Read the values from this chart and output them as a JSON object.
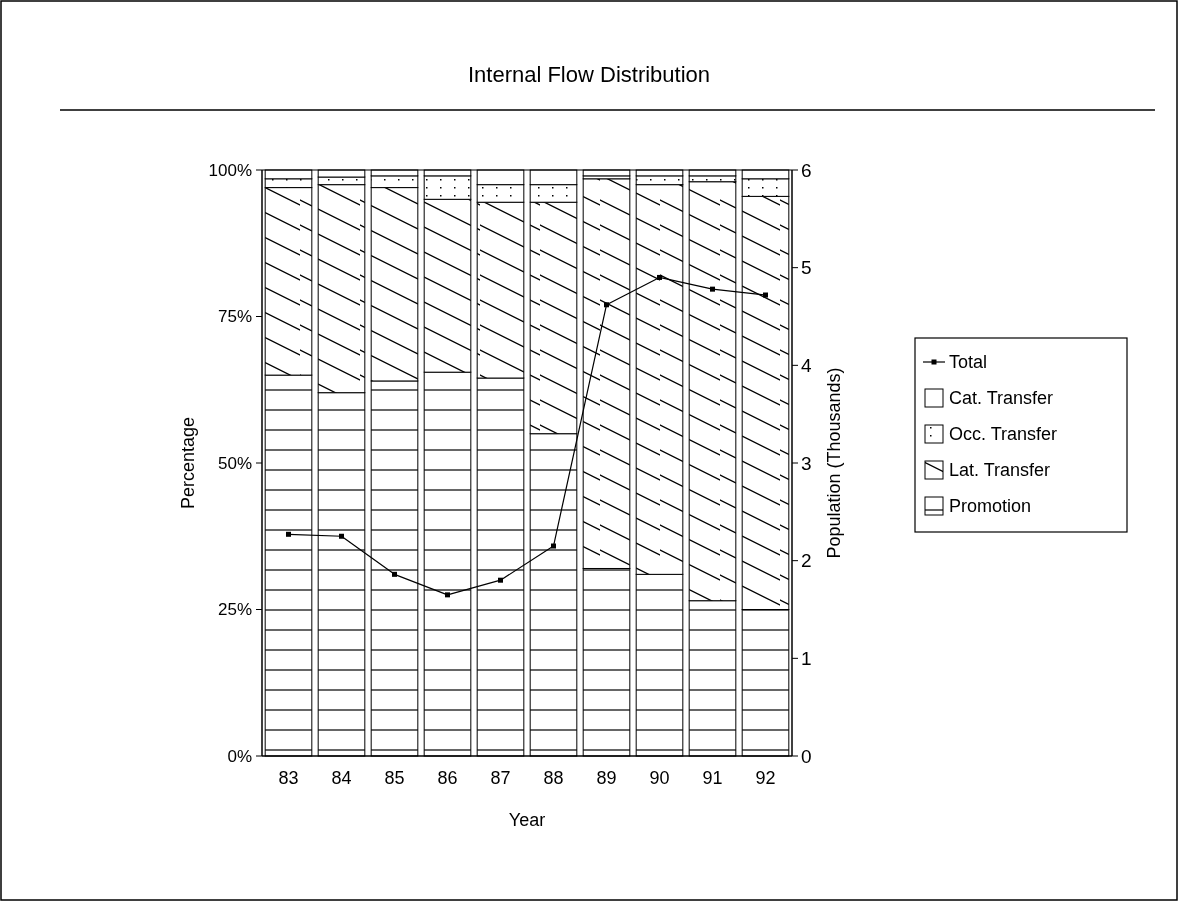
{
  "chart_data": {
    "type": "bar",
    "title": "Internal Flow Distribution",
    "xlabel": "Year",
    "ylabel": "Percentage",
    "y2label": "Population (Thousands)",
    "categories": [
      "83",
      "84",
      "85",
      "86",
      "87",
      "88",
      "89",
      "90",
      "91",
      "92"
    ],
    "stacked": true,
    "legend": "right",
    "marker": "square",
    "line_style": "solid",
    "ylim": [
      0,
      100
    ],
    "yticks": [
      {
        "value": 0,
        "label": "0%"
      },
      {
        "value": 25,
        "label": "25%"
      },
      {
        "value": 50,
        "label": "50%"
      },
      {
        "value": 75,
        "label": "75%"
      },
      {
        "value": 100,
        "label": "100%"
      }
    ],
    "y2lim": [
      0,
      6
    ],
    "y2ticks": [
      0,
      1,
      2,
      3,
      4,
      5,
      6
    ],
    "series": [
      {
        "name": "Promotion",
        "color": "#ffffff",
        "values": [
          65,
          62,
          64,
          65.5,
          64.5,
          55,
          32,
          31,
          26.5,
          25
        ]
      },
      {
        "name": "Lat. Transfer",
        "color": "#ffffff",
        "values": [
          32,
          35.5,
          33,
          29.5,
          30,
          39.5,
          66.5,
          66.5,
          71.5,
          70.5
        ]
      },
      {
        "name": "Occ. Transfer",
        "color": "#ffffff",
        "values": [
          1.5,
          1.3,
          2,
          4,
          3,
          3,
          0.5,
          1.5,
          1,
          3
        ]
      },
      {
        "name": "Cat. Transfer",
        "color": "#ffffff",
        "values": [
          1.5,
          1.2,
          1,
          1,
          2.5,
          2.5,
          1,
          1,
          1,
          1.5
        ]
      },
      {
        "name": "Total",
        "type": "line",
        "axis": "y2",
        "color": "#000000",
        "values": [
          2.27,
          2.25,
          1.86,
          1.65,
          1.8,
          2.15,
          4.62,
          4.9,
          4.78,
          4.72
        ]
      }
    ]
  }
}
